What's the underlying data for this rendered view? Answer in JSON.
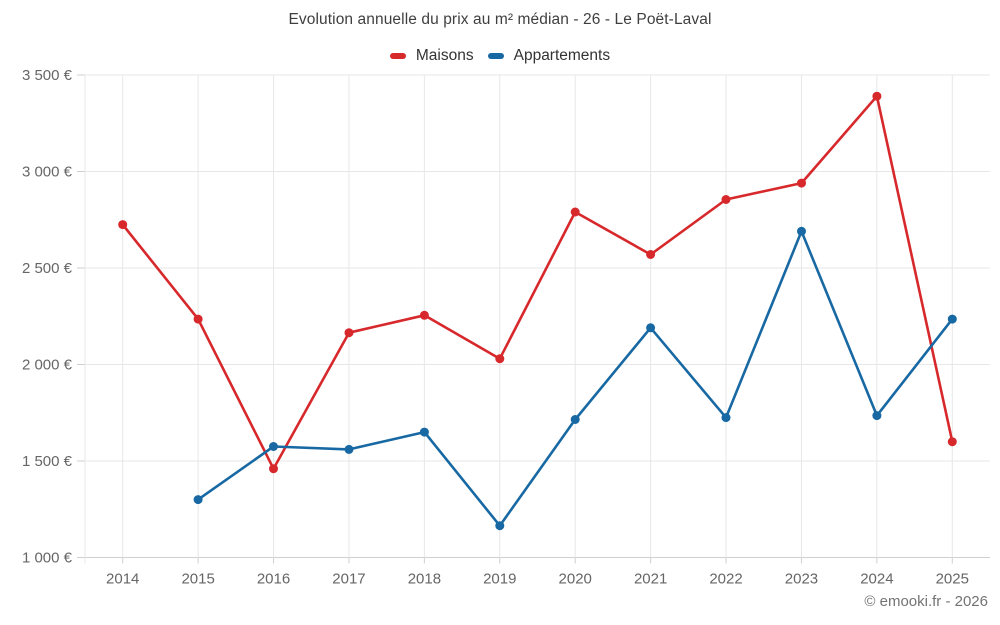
{
  "footer": {
    "copyright": "© emooki.fr - 2026"
  },
  "colors": {
    "maisons": "#d7282c",
    "appartements": "#1869a3",
    "grid": "#e7e7e7",
    "axis": "#cfcfcf",
    "label_text": "#666666",
    "title_text": "#3f3f3f"
  },
  "chart_data": {
    "type": "line",
    "title": "Evolution annuelle du prix au m² médian - 26 - Le Poët-Laval",
    "categories": [
      "2014",
      "2015",
      "2016",
      "2017",
      "2018",
      "2019",
      "2020",
      "2021",
      "2022",
      "2023",
      "2024",
      "2025"
    ],
    "series": [
      {
        "name": "Maisons",
        "color": "#d7282c",
        "values": [
          2725,
          2235,
          1460,
          2165,
          2255,
          2030,
          2790,
          2570,
          2855,
          2940,
          3390,
          1600
        ]
      },
      {
        "name": "Appartements",
        "color": "#1869a3",
        "values": [
          null,
          1300,
          1575,
          1560,
          1650,
          1165,
          1715,
          2190,
          1725,
          2690,
          1735,
          2235
        ]
      }
    ],
    "xlabel": "",
    "ylabel": "",
    "ylim": [
      1000,
      3500
    ],
    "ytick_step": 500,
    "ytick_suffix": " €",
    "grid": true,
    "legend_position": "top",
    "marker": "circle"
  }
}
